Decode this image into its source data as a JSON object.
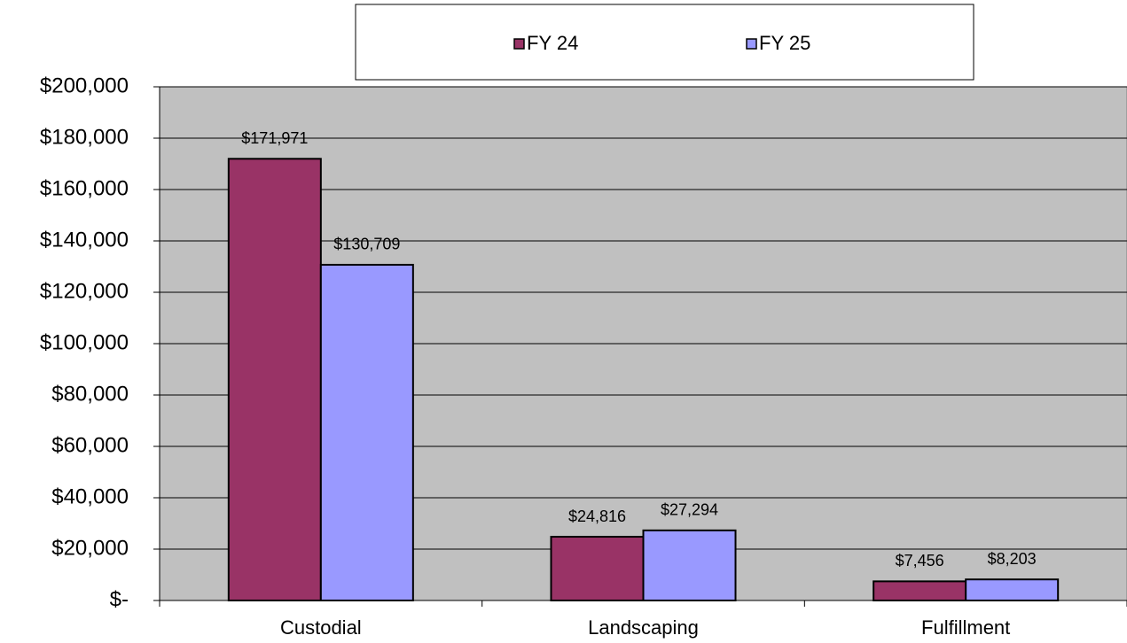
{
  "chart_data": {
    "type": "bar",
    "categories": [
      "Custodial",
      "Landscaping",
      "Fulfillment"
    ],
    "series": [
      {
        "name": "FY 24",
        "color": "#993366",
        "values": [
          171971,
          24816,
          7456
        ],
        "value_labels": [
          "$171,971",
          "$24,816",
          "$7,456"
        ]
      },
      {
        "name": "FY 25",
        "color": "#9999ff",
        "values": [
          130709,
          27294,
          8203
        ],
        "value_labels": [
          "$130,709",
          "$27,294",
          "$8,203"
        ]
      }
    ],
    "ylim": [
      0,
      200000
    ],
    "yticks": [
      {
        "value": 0,
        "label": "$-"
      },
      {
        "value": 20000,
        "label": "$20,000"
      },
      {
        "value": 40000,
        "label": "$40,000"
      },
      {
        "value": 60000,
        "label": "$60,000"
      },
      {
        "value": 80000,
        "label": "$80,000"
      },
      {
        "value": 100000,
        "label": "$100,000"
      },
      {
        "value": 120000,
        "label": "$120,000"
      },
      {
        "value": 140000,
        "label": "$140,000"
      },
      {
        "value": 160000,
        "label": "$160,000"
      },
      {
        "value": 180000,
        "label": "$180,000"
      },
      {
        "value": 200000,
        "label": "$200,000"
      }
    ],
    "grid": true,
    "legend": "top",
    "plot_background": "#c0c0c0"
  }
}
